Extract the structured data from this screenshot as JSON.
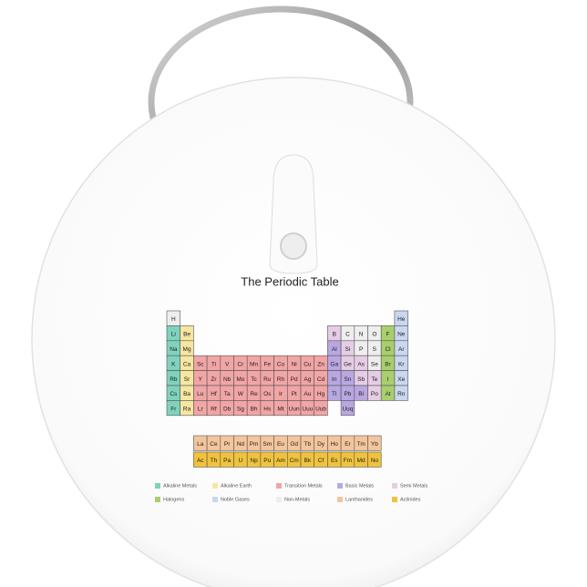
{
  "title": "The Periodic Table",
  "legend": [
    {
      "name": "Alkaline Metals",
      "color": "#7fd3bd"
    },
    {
      "name": "Alkaline Earth",
      "color": "#f7e6a0"
    },
    {
      "name": "Transition Metals",
      "color": "#f2a5a5"
    },
    {
      "name": "Basic Metals",
      "color": "#b9a7e2"
    },
    {
      "name": "Semi Metals",
      "color": "#e6cde6"
    },
    {
      "name": "Halogens",
      "color": "#a9cf6c"
    },
    {
      "name": "Noble Gases",
      "color": "#c9d7f0"
    },
    {
      "name": "Non-Metals",
      "color": "#eeeeee"
    },
    {
      "name": "Lanthanides",
      "color": "#f4c59c"
    },
    {
      "name": "Actinides",
      "color": "#f1c23c"
    }
  ],
  "table": {
    "rows": [
      [
        {
          "symbol": "H",
          "category": "Non-Metals"
        },
        {
          "symbol": "He",
          "category": "Noble Gases"
        }
      ],
      [
        {
          "symbol": "Li",
          "category": "Alkaline Metals"
        },
        {
          "symbol": "Be",
          "category": "Alkaline Earth"
        },
        {
          "symbol": "B",
          "category": "Semi Metals"
        },
        {
          "symbol": "C",
          "category": "Non-Metals"
        },
        {
          "symbol": "N",
          "category": "Non-Metals"
        },
        {
          "symbol": "O",
          "category": "Non-Metals"
        },
        {
          "symbol": "F",
          "category": "Halogens"
        },
        {
          "symbol": "Ne",
          "category": "Noble Gases"
        }
      ],
      [
        {
          "symbol": "Na",
          "category": "Alkaline Metals"
        },
        {
          "symbol": "Mg",
          "category": "Alkaline Earth"
        },
        {
          "symbol": "Al",
          "category": "Basic Metals"
        },
        {
          "symbol": "Si",
          "category": "Semi Metals"
        },
        {
          "symbol": "P",
          "category": "Non-Metals"
        },
        {
          "symbol": "S",
          "category": "Non-Metals"
        },
        {
          "symbol": "Cl",
          "category": "Halogens"
        },
        {
          "symbol": "Ar",
          "category": "Noble Gases"
        }
      ],
      [
        {
          "symbol": "K",
          "category": "Alkaline Metals"
        },
        {
          "symbol": "Ca",
          "category": "Alkaline Earth"
        },
        {
          "symbol": "Sc",
          "category": "Transition Metals"
        },
        {
          "symbol": "Ti",
          "category": "Transition Metals"
        },
        {
          "symbol": "V",
          "category": "Transition Metals"
        },
        {
          "symbol": "Cr",
          "category": "Transition Metals"
        },
        {
          "symbol": "Mn",
          "category": "Transition Metals"
        },
        {
          "symbol": "Fe",
          "category": "Transition Metals"
        },
        {
          "symbol": "Co",
          "category": "Transition Metals"
        },
        {
          "symbol": "Ni",
          "category": "Transition Metals"
        },
        {
          "symbol": "Cu",
          "category": "Transition Metals"
        },
        {
          "symbol": "Zn",
          "category": "Transition Metals"
        },
        {
          "symbol": "Ga",
          "category": "Basic Metals"
        },
        {
          "symbol": "Ge",
          "category": "Semi Metals"
        },
        {
          "symbol": "As",
          "category": "Semi Metals"
        },
        {
          "symbol": "Se",
          "category": "Non-Metals"
        },
        {
          "symbol": "Br",
          "category": "Halogens"
        },
        {
          "symbol": "Kr",
          "category": "Noble Gases"
        }
      ],
      [
        {
          "symbol": "Rb",
          "category": "Alkaline Metals"
        },
        {
          "symbol": "Sr",
          "category": "Alkaline Earth"
        },
        {
          "symbol": "Y",
          "category": "Transition Metals"
        },
        {
          "symbol": "Zr",
          "category": "Transition Metals"
        },
        {
          "symbol": "Nb",
          "category": "Transition Metals"
        },
        {
          "symbol": "Mo",
          "category": "Transition Metals"
        },
        {
          "symbol": "Tc",
          "category": "Transition Metals"
        },
        {
          "symbol": "Ru",
          "category": "Transition Metals"
        },
        {
          "symbol": "Rh",
          "category": "Transition Metals"
        },
        {
          "symbol": "Pd",
          "category": "Transition Metals"
        },
        {
          "symbol": "Ag",
          "category": "Transition Metals"
        },
        {
          "symbol": "Cd",
          "category": "Transition Metals"
        },
        {
          "symbol": "In",
          "category": "Basic Metals"
        },
        {
          "symbol": "Sn",
          "category": "Basic Metals"
        },
        {
          "symbol": "Sb",
          "category": "Semi Metals"
        },
        {
          "symbol": "Te",
          "category": "Semi Metals"
        },
        {
          "symbol": "I",
          "category": "Halogens"
        },
        {
          "symbol": "Xe",
          "category": "Noble Gases"
        }
      ],
      [
        {
          "symbol": "Cs",
          "category": "Alkaline Metals"
        },
        {
          "symbol": "Ba",
          "category": "Alkaline Earth"
        },
        {
          "symbol": "Lu",
          "category": "Transition Metals"
        },
        {
          "symbol": "Hf",
          "category": "Transition Metals"
        },
        {
          "symbol": "Ta",
          "category": "Transition Metals"
        },
        {
          "symbol": "W",
          "category": "Transition Metals"
        },
        {
          "symbol": "Re",
          "category": "Transition Metals"
        },
        {
          "symbol": "Os",
          "category": "Transition Metals"
        },
        {
          "symbol": "Ir",
          "category": "Transition Metals"
        },
        {
          "symbol": "Pt",
          "category": "Transition Metals"
        },
        {
          "symbol": "Au",
          "category": "Transition Metals"
        },
        {
          "symbol": "Hg",
          "category": "Transition Metals"
        },
        {
          "symbol": "Tl",
          "category": "Basic Metals"
        },
        {
          "symbol": "Pb",
          "category": "Basic Metals"
        },
        {
          "symbol": "Bi",
          "category": "Basic Metals"
        },
        {
          "symbol": "Po",
          "category": "Semi Metals"
        },
        {
          "symbol": "At",
          "category": "Halogens"
        },
        {
          "symbol": "Rn",
          "category": "Noble Gases"
        }
      ],
      [
        {
          "symbol": "Fr",
          "category": "Alkaline Metals"
        },
        {
          "symbol": "Ra",
          "category": "Alkaline Earth"
        },
        {
          "symbol": "Lr",
          "category": "Transition Metals"
        },
        {
          "symbol": "Rf",
          "category": "Transition Metals"
        },
        {
          "symbol": "Db",
          "category": "Transition Metals"
        },
        {
          "symbol": "Sg",
          "category": "Transition Metals"
        },
        {
          "symbol": "Bh",
          "category": "Transition Metals"
        },
        {
          "symbol": "Hs",
          "category": "Transition Metals"
        },
        {
          "symbol": "Mt",
          "category": "Transition Metals"
        },
        {
          "symbol": "Uun",
          "category": "Transition Metals"
        },
        {
          "symbol": "Uuu",
          "category": "Transition Metals"
        },
        {
          "symbol": "Uub",
          "category": "Transition Metals"
        },
        {
          "symbol": "Uuq",
          "category": "Basic Metals"
        }
      ]
    ],
    "f_block": [
      [
        {
          "symbol": "La",
          "category": "Lanthanides"
        },
        {
          "symbol": "Ce",
          "category": "Lanthanides"
        },
        {
          "symbol": "Pr",
          "category": "Lanthanides"
        },
        {
          "symbol": "Nd",
          "category": "Lanthanides"
        },
        {
          "symbol": "Pm",
          "category": "Lanthanides"
        },
        {
          "symbol": "Sm",
          "category": "Lanthanides"
        },
        {
          "symbol": "Eu",
          "category": "Lanthanides"
        },
        {
          "symbol": "Gd",
          "category": "Lanthanides"
        },
        {
          "symbol": "Tb",
          "category": "Lanthanides"
        },
        {
          "symbol": "Dy",
          "category": "Lanthanides"
        },
        {
          "symbol": "Ho",
          "category": "Lanthanides"
        },
        {
          "symbol": "Er",
          "category": "Lanthanides"
        },
        {
          "symbol": "Tm",
          "category": "Lanthanides"
        },
        {
          "symbol": "Yb",
          "category": "Lanthanides"
        }
      ],
      [
        {
          "symbol": "Ac",
          "category": "Actinides"
        },
        {
          "symbol": "Th",
          "category": "Actinides"
        },
        {
          "symbol": "Pa",
          "category": "Actinides"
        },
        {
          "symbol": "U",
          "category": "Actinides"
        },
        {
          "symbol": "Np",
          "category": "Actinides"
        },
        {
          "symbol": "Pu",
          "category": "Actinides"
        },
        {
          "symbol": "Am",
          "category": "Actinides"
        },
        {
          "symbol": "Cm",
          "category": "Actinides"
        },
        {
          "symbol": "Bk",
          "category": "Actinides"
        },
        {
          "symbol": "Cf",
          "category": "Actinides"
        },
        {
          "symbol": "Es",
          "category": "Actinides"
        },
        {
          "symbol": "Fm",
          "category": "Actinides"
        },
        {
          "symbol": "Md",
          "category": "Actinides"
        },
        {
          "symbol": "No",
          "category": "Actinides"
        }
      ]
    ]
  }
}
